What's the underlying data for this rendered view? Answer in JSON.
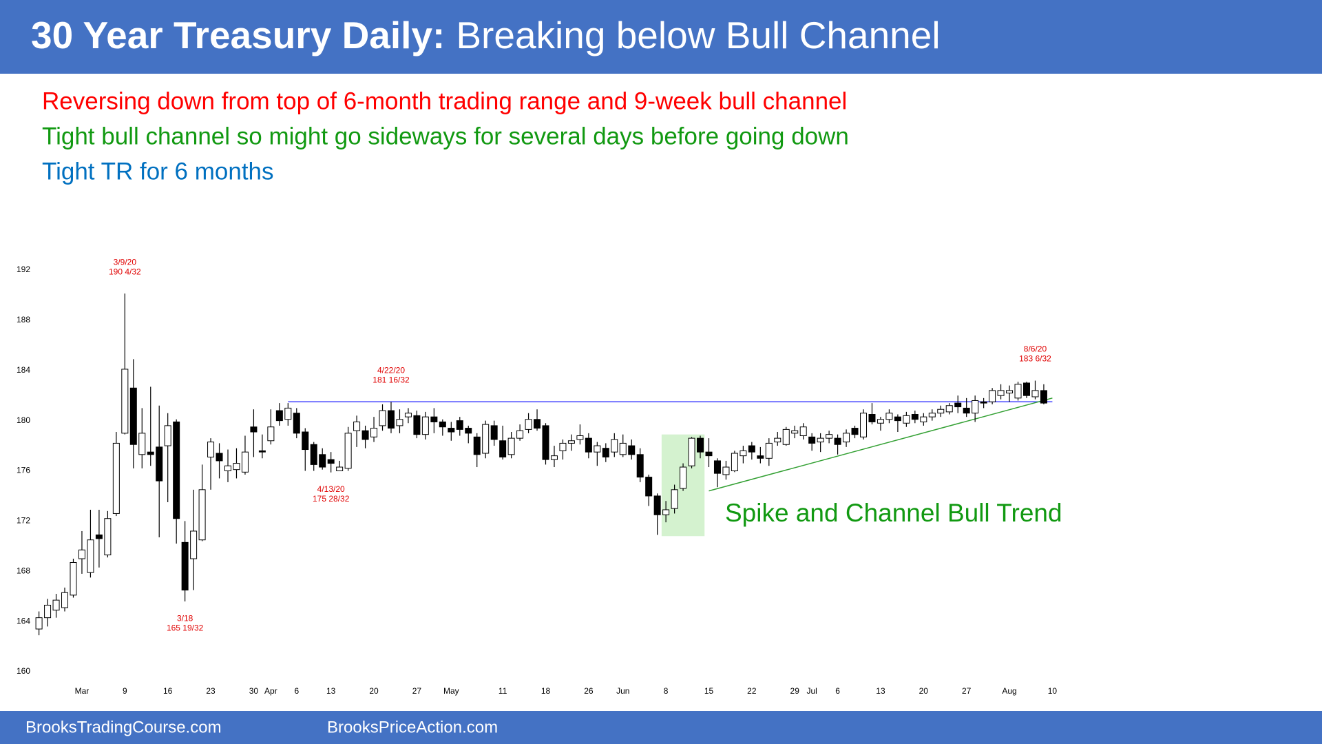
{
  "header": {
    "title_bold": "30 Year Treasury Daily:",
    "title_rest": "Breaking below Bull Channel"
  },
  "notes": [
    {
      "text": "Reversing down from top of 6-month trading range and 9-week bull channel",
      "color": "#ff0000"
    },
    {
      "text": "Tight bull channel so might go sideways for several days before going down",
      "color": "#119911"
    },
    {
      "text": "Tight TR for 6 months",
      "color": "#0070c0"
    }
  ],
  "chart_data": {
    "type": "candlestick",
    "categories": [
      null,
      null,
      null,
      null,
      null,
      "Mar",
      null,
      null,
      null,
      null,
      "9",
      null,
      null,
      null,
      null,
      "16",
      null,
      null,
      null,
      null,
      "23",
      null,
      null,
      null,
      null,
      "30",
      null,
      "Apr",
      null,
      null,
      "6",
      null,
      null,
      null,
      "13",
      null,
      null,
      null,
      null,
      "20",
      null,
      null,
      null,
      null,
      "27",
      null,
      null,
      null,
      "May",
      null,
      null,
      null,
      null,
      null,
      "11",
      null,
      null,
      null,
      null,
      "18",
      null,
      null,
      null,
      null,
      "26",
      null,
      null,
      null,
      "Jun",
      null,
      null,
      null,
      null,
      "8",
      null,
      null,
      null,
      null,
      "15",
      null,
      null,
      null,
      null,
      "22",
      null,
      null,
      null,
      null,
      "29",
      null,
      "Jul",
      null,
      null,
      "6",
      null,
      null,
      null,
      null,
      "13",
      null,
      null,
      null,
      null,
      "20",
      null,
      null,
      null,
      null,
      "27",
      null,
      null,
      null,
      null,
      "Aug",
      null,
      null,
      null,
      null,
      "10"
    ],
    "open": [
      163.4,
      164.3,
      164.9,
      165.1,
      166.1,
      169.0,
      167.9,
      170.9,
      169.3,
      172.6,
      179.0,
      182.6,
      177.3,
      177.5,
      177.9,
      178.0,
      179.9,
      170.3,
      169.0,
      170.5,
      177.1,
      177.4,
      176.0,
      176.1,
      175.9,
      179.5,
      177.6,
      178.4,
      180.8,
      180.1,
      180.6,
      179.1,
      178.1,
      177.3,
      176.9,
      176.0,
      176.2,
      179.2,
      179.2,
      178.7,
      179.6,
      180.8,
      179.6,
      180.3,
      180.4,
      178.9,
      180.3,
      179.9,
      179.4,
      180.0,
      179.4,
      178.7,
      177.4,
      179.6,
      178.4,
      177.3,
      178.6,
      179.3,
      180.1,
      179.6,
      176.9,
      177.6,
      178.2,
      178.5,
      178.6,
      177.5,
      177.8,
      177.5,
      177.3,
      178.0,
      177.3,
      175.5,
      174.0,
      172.5,
      173.0,
      174.6,
      176.4,
      178.6,
      177.5,
      176.8,
      175.7,
      176.0,
      177.2,
      178.0,
      177.2,
      177.0,
      178.3,
      178.1,
      179.0,
      178.8,
      178.7,
      178.3,
      178.6,
      178.6,
      178.3,
      179.4,
      178.7,
      180.5,
      179.8,
      180.1,
      180.3,
      179.8,
      180.5,
      179.9,
      180.3,
      180.6,
      180.7,
      181.4,
      181.0,
      180.6,
      181.5,
      181.5,
      182.0,
      182.2,
      181.8,
      183.0,
      181.9,
      182.4,
      null
    ],
    "high": [
      164.8,
      165.8,
      166.2,
      166.7,
      169.0,
      171.2,
      172.9,
      172.9,
      172.8,
      179.1,
      190.125,
      184.9,
      181.0,
      182.7,
      181.2,
      180.6,
      180.1,
      172.0,
      174.5,
      176.5,
      178.6,
      178.2,
      177.7,
      177.8,
      178.8,
      180.9,
      178.9,
      180.9,
      181.4,
      181.4,
      181.0,
      179.4,
      178.3,
      177.8,
      177.5,
      176.8,
      179.5,
      180.4,
      179.6,
      180.3,
      181.3,
      181.5,
      180.9,
      181.0,
      180.8,
      180.7,
      181.0,
      180.1,
      179.9,
      180.3,
      179.6,
      179.0,
      180.0,
      180.0,
      179.6,
      179.1,
      179.7,
      180.6,
      180.9,
      179.8,
      178.0,
      178.5,
      178.9,
      179.7,
      179.0,
      178.3,
      178.2,
      179.0,
      178.9,
      178.5,
      177.8,
      175.7,
      174.2,
      173.6,
      174.9,
      176.6,
      178.7,
      178.8,
      178.6,
      177.0,
      176.8,
      177.6,
      178.0,
      178.3,
      177.9,
      178.6,
      179.1,
      179.5,
      179.6,
      179.8,
      179.0,
      179.0,
      179.2,
      178.9,
      179.3,
      179.6,
      180.9,
      181.4,
      180.3,
      180.9,
      180.5,
      180.7,
      180.8,
      180.6,
      180.9,
      181.2,
      181.4,
      182.0,
      181.8,
      182.0,
      181.8,
      182.6,
      182.9,
      182.8,
      183.1,
      183.1,
      183.1875,
      182.9,
      null
    ],
    "low": [
      162.9,
      163.6,
      164.3,
      164.8,
      165.9,
      167.8,
      167.5,
      168.3,
      169.1,
      172.4,
      178.9,
      176.2,
      176.2,
      176.4,
      170.7,
      173.5,
      170.2,
      165.59375,
      166.5,
      170.4,
      174.5,
      175.4,
      175.1,
      175.4,
      175.7,
      177.1,
      177.0,
      178.1,
      179.6,
      179.6,
      178.6,
      176.0,
      176.0,
      176.1,
      175.875,
      176.0,
      176.0,
      177.9,
      177.8,
      178.3,
      179.2,
      179.0,
      179.0,
      179.8,
      178.6,
      178.5,
      179.0,
      178.8,
      178.4,
      178.8,
      178.2,
      176.3,
      177.0,
      178.0,
      176.9,
      177.0,
      178.4,
      179.0,
      179.2,
      176.5,
      176.3,
      176.9,
      177.6,
      178.1,
      177.0,
      176.4,
      176.7,
      177.1,
      177.1,
      176.9,
      175.1,
      173.2,
      170.9,
      171.9,
      172.6,
      174.4,
      176.2,
      177.0,
      176.3,
      174.7,
      175.3,
      175.9,
      176.6,
      176.9,
      176.6,
      176.4,
      178.0,
      178.0,
      178.6,
      178.5,
      177.6,
      177.5,
      178.2,
      177.3,
      177.9,
      178.6,
      178.5,
      179.7,
      179.2,
      179.8,
      179.1,
      179.5,
      179.8,
      179.6,
      180.0,
      180.3,
      180.5,
      180.6,
      180.3,
      179.9,
      181.0,
      181.3,
      181.7,
      181.5,
      181.6,
      181.8,
      181.7,
      181.3,
      null
    ],
    "close": [
      164.3,
      165.3,
      165.7,
      166.3,
      168.7,
      169.7,
      170.5,
      170.6,
      172.2,
      178.2,
      184.1,
      178.1,
      179.0,
      177.3,
      175.2,
      179.6,
      172.2,
      166.5,
      171.2,
      174.5,
      178.3,
      176.8,
      176.4,
      176.6,
      177.5,
      179.1,
      177.5,
      179.5,
      180.0,
      181.0,
      179.0,
      177.7,
      176.5,
      176.3,
      176.6,
      176.3,
      179.0,
      179.9,
      178.5,
      179.4,
      180.8,
      179.4,
      180.1,
      180.6,
      178.9,
      180.3,
      179.9,
      179.5,
      179.1,
      179.3,
      179.0,
      177.3,
      179.7,
      178.5,
      177.1,
      178.6,
      179.2,
      180.1,
      179.4,
      176.9,
      177.2,
      178.2,
      178.4,
      178.8,
      177.5,
      178.0,
      177.1,
      178.5,
      178.2,
      177.3,
      175.5,
      174.0,
      172.5,
      172.9,
      174.5,
      176.3,
      178.6,
      177.5,
      177.2,
      175.8,
      176.3,
      177.4,
      177.6,
      177.5,
      177.0,
      178.2,
      178.6,
      179.3,
      179.2,
      179.5,
      178.2,
      178.6,
      178.9,
      178.1,
      179.0,
      178.9,
      180.6,
      179.9,
      180.1,
      180.6,
      180.0,
      180.4,
      180.1,
      180.3,
      180.6,
      180.9,
      181.2,
      181.1,
      180.6,
      181.6,
      181.4,
      182.4,
      182.4,
      182.4,
      182.9,
      182.0,
      182.4,
      181.4,
      null
    ],
    "up_color": "#ffffff",
    "down_color": "#000000",
    "ylim": [
      160,
      192
    ],
    "yticks": [
      160,
      164,
      168,
      172,
      176,
      180,
      184,
      188,
      192
    ],
    "grid": false,
    "annotations": [
      {
        "lines": [
          "3/9/20",
          "190 4/32"
        ],
        "value": 190.125,
        "side": "high"
      },
      {
        "lines": [
          "3/18",
          "165 19/32"
        ],
        "value": 165.59375,
        "side": "low"
      },
      {
        "lines": [
          "4/13/20",
          "175 28/32"
        ],
        "value": 175.875,
        "side": "low"
      },
      {
        "lines": [
          "4/22/20",
          "181 16/32"
        ],
        "value": 181.5,
        "side": "high"
      },
      {
        "lines": [
          "8/6/20",
          "183 6/32"
        ],
        "value": 183.1875,
        "side": "high"
      }
    ],
    "annotation_color": "#e00000",
    "lines": [
      {
        "color": "#4040ff",
        "points": [
          [
            29,
            181.5
          ],
          [
            118,
            181.5
          ]
        ]
      },
      {
        "color": "#33a033",
        "points": [
          [
            78,
            174.4
          ],
          [
            118,
            181.8
          ]
        ]
      }
    ],
    "highlight": {
      "color": "#d4f2cf",
      "bars": [
        73,
        77
      ],
      "range": [
        170.8,
        178.9
      ]
    },
    "trend_label": {
      "text": "Spike and Channel Bull Trend",
      "color": "#119911"
    }
  },
  "footer": {
    "left": "BrooksTradingCourse.com",
    "right": "BrooksPriceAction.com"
  }
}
